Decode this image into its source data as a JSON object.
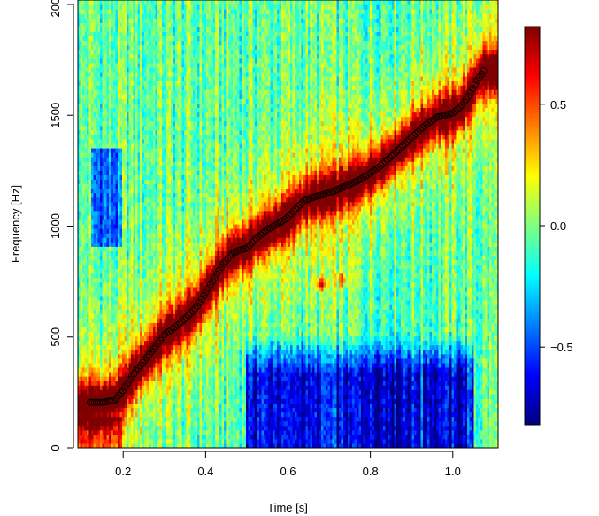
{
  "chart_data": {
    "type": "heatmap",
    "title": "",
    "xlabel": "Time [s]",
    "ylabel": "Frequency [Hz]",
    "xlim": [
      0.09,
      1.11
    ],
    "ylim": [
      0,
      2020
    ],
    "x_ticks": [
      0.2,
      0.4,
      0.6,
      0.8,
      1.0
    ],
    "x_tick_labels": [
      "0.2",
      "0.4",
      "0.6",
      "0.8",
      "1.0"
    ],
    "y_ticks": [
      0,
      500,
      1000,
      1500,
      2000
    ],
    "y_tick_labels": [
      "0",
      "500",
      "1000",
      "1500",
      "2000"
    ],
    "colorbar": {
      "min": -0.82,
      "max": 0.82,
      "ticks": [
        -0.5,
        0.0,
        0.5
      ],
      "tick_labels": [
        "−0.5",
        "0.0",
        "0.5"
      ],
      "colormap": [
        "#00007f",
        "#0000ff",
        "#007fff",
        "#00ffff",
        "#7fff7f",
        "#ffff00",
        "#ff7f00",
        "#ff0000",
        "#7f0000"
      ]
    },
    "ridge_series": {
      "name": "",
      "marker": "open-circle",
      "color": "#000000",
      "points": [
        [
          0.12,
          205
        ],
        [
          0.15,
          205
        ],
        [
          0.18,
          215
        ],
        [
          0.2,
          260
        ],
        [
          0.22,
          320
        ],
        [
          0.25,
          390
        ],
        [
          0.28,
          460
        ],
        [
          0.3,
          510
        ],
        [
          0.33,
          550
        ],
        [
          0.36,
          600
        ],
        [
          0.38,
          640
        ],
        [
          0.4,
          700
        ],
        [
          0.42,
          760
        ],
        [
          0.44,
          820
        ],
        [
          0.46,
          870
        ],
        [
          0.48,
          890
        ],
        [
          0.5,
          900
        ],
        [
          0.52,
          940
        ],
        [
          0.55,
          985
        ],
        [
          0.58,
          1015
        ],
        [
          0.6,
          1040
        ],
        [
          0.62,
          1080
        ],
        [
          0.64,
          1115
        ],
        [
          0.66,
          1130
        ],
        [
          0.7,
          1150
        ],
        [
          0.74,
          1180
        ],
        [
          0.78,
          1215
        ],
        [
          0.82,
          1265
        ],
        [
          0.86,
          1330
        ],
        [
          0.9,
          1400
        ],
        [
          0.93,
          1450
        ],
        [
          0.96,
          1490
        ],
        [
          1.0,
          1510
        ],
        [
          1.02,
          1540
        ],
        [
          1.04,
          1590
        ],
        [
          1.06,
          1660
        ],
        [
          1.075,
          1700
        ]
      ]
    },
    "heatmap_features": {
      "low_band_min": {
        "x": [
          0.5,
          1.05
        ],
        "y": [
          0,
          520
        ],
        "value": -0.7
      },
      "upper_left_min": {
        "x": [
          0.12,
          0.2
        ],
        "y": [
          900,
          1350
        ],
        "value": -0.45
      },
      "side_blobs": [
        {
          "x": 0.68,
          "y": 740,
          "value": 0.5
        },
        {
          "x": 0.73,
          "y": 760,
          "value": 0.45
        }
      ]
    }
  }
}
